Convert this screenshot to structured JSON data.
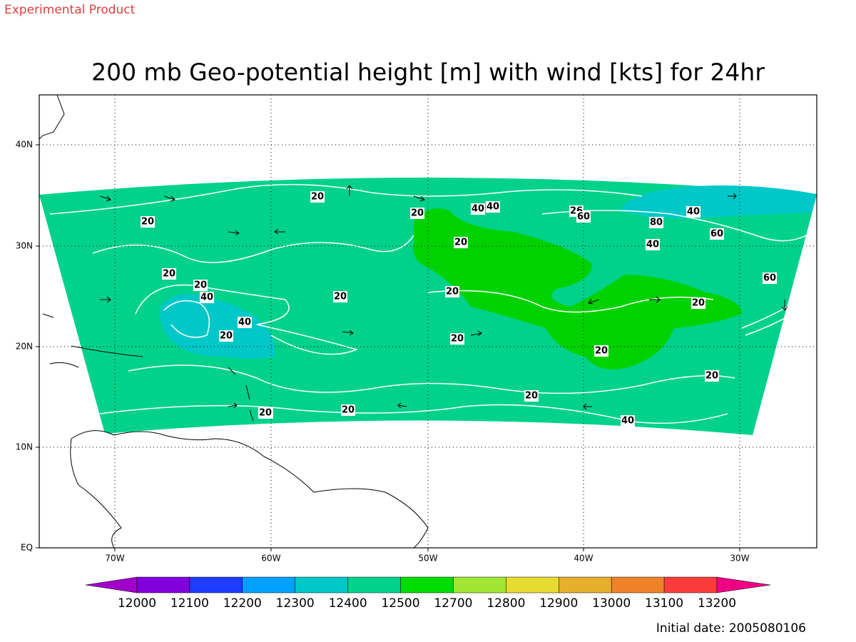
{
  "header": {
    "note": "Experimental Product",
    "title": "200 mb Geo-potential height [m] with wind [kts] for 24hr"
  },
  "map": {
    "lat_labels": [
      "40N",
      "30N",
      "20N",
      "10N",
      "EQ"
    ],
    "lon_labels": [
      "70W",
      "60W",
      "50W",
      "40W",
      "30W"
    ],
    "contour_labels": [
      "20",
      "20",
      "20",
      "20",
      "40",
      "40",
      "20",
      "20",
      "20",
      "20",
      "40",
      "40",
      "20",
      "20",
      "20",
      "20",
      "20",
      "26",
      "60",
      "40",
      "80",
      "60",
      "40",
      "60",
      "20",
      "20",
      "20",
      "20",
      "40"
    ]
  },
  "colorbar": {
    "labels": [
      12000,
      12100,
      12200,
      12300,
      12400,
      12500,
      12700,
      12800,
      12900,
      13000,
      13100,
      13200
    ],
    "colors": [
      "#a000c8",
      "#8200dc",
      "#1e3cff",
      "#00a0ff",
      "#00c8c8",
      "#00d28c",
      "#00dc00",
      "#a0e632",
      "#e6dc32",
      "#e6af2d",
      "#f08228",
      "#fa3c3c",
      "#f00082"
    ]
  },
  "footer": {
    "initial_date": "Initial date: 2005080106"
  }
}
